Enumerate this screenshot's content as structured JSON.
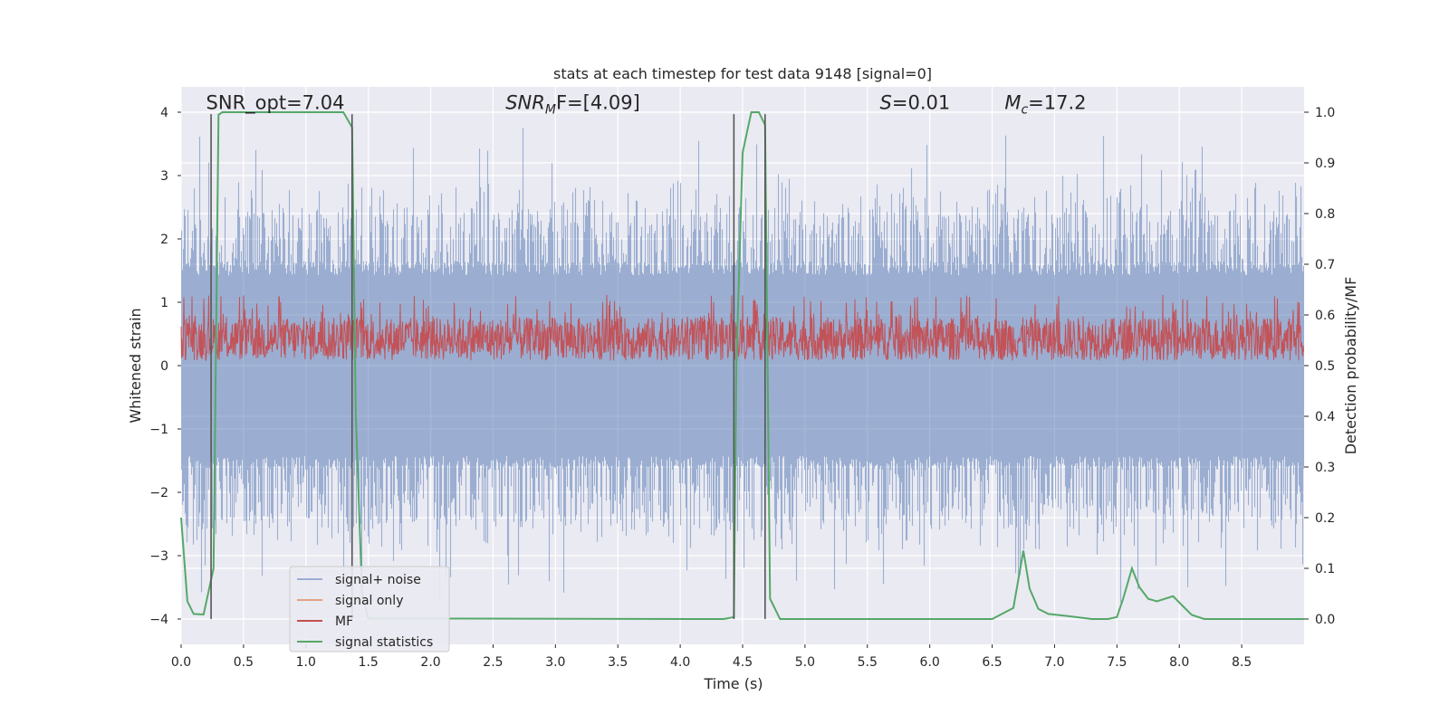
{
  "chart_data": {
    "type": "line",
    "title": "stats at each timestep for test data 9148 [signal=0]",
    "xlabel": "Time (s)",
    "ylabel": "Whitened strain",
    "y2label": "Detection probability/MF",
    "xlim": [
      0.0,
      9.0
    ],
    "ylim": [
      -4.4,
      4.4
    ],
    "y2lim": [
      -0.05,
      1.05
    ],
    "grid": true,
    "legend_position": "lower-left",
    "xticks": [
      0.0,
      0.5,
      1.0,
      1.5,
      2.0,
      2.5,
      3.0,
      3.5,
      4.0,
      4.5,
      5.0,
      5.5,
      6.0,
      6.5,
      7.0,
      7.5,
      8.0,
      8.5
    ],
    "xtick_labels": [
      "0.0",
      "0.5",
      "1.0",
      "1.5",
      "2.0",
      "2.5",
      "3.0",
      "3.5",
      "4.0",
      "4.5",
      "5.0",
      "5.5",
      "6.0",
      "6.5",
      "7.0",
      "7.5",
      "8.0",
      "8.5"
    ],
    "yticks": [
      4,
      3,
      2,
      1,
      0,
      -1,
      -2,
      -3,
      -4
    ],
    "ytick_labels": [
      "4",
      "3",
      "2",
      "1",
      "0",
      "−1",
      "−2",
      "−3",
      "−4"
    ],
    "y2ticks": [
      1.0,
      0.9,
      0.8,
      0.7,
      0.6,
      0.5,
      0.4,
      0.3,
      0.2,
      0.1,
      0.0
    ],
    "y2tick_labels": [
      "1.0",
      "0.9",
      "0.8",
      "0.7",
      "0.6",
      "0.5",
      "0.4",
      "0.3",
      "0.2",
      "0.1",
      "0.0"
    ],
    "annotations": [
      {
        "text": "SNR_opt=7.04",
        "x": 0.2,
        "y": 4.05
      },
      {
        "prefix": "SNR",
        "sub": "M",
        "suffix": "F=[4.09]",
        "x": 2.6,
        "y": 4.05
      },
      {
        "prefix": "S",
        "sub": "",
        "suffix": "=0.01",
        "x": 5.6,
        "y": 4.05
      },
      {
        "prefix": "M",
        "sub": "c",
        "suffix": "=17.2",
        "x": 6.6,
        "y": 4.05
      }
    ],
    "vertical_markers": [
      {
        "x": 0.24,
        "y_range": [
          -4.0,
          3.97
        ]
      },
      {
        "x": 1.37,
        "y_range": [
          -4.0,
          3.97
        ]
      },
      {
        "x": 4.43,
        "y_range": [
          -4.0,
          3.97
        ]
      },
      {
        "x": 4.68,
        "y_range": [
          -4.0,
          3.97
        ]
      }
    ],
    "series": [
      {
        "name": "signal+ noise",
        "color": "#4c72b0",
        "style": "dense noise, approx. |x| <= 2.4 with spikes to ±3.9",
        "envelope_core": 1.5,
        "envelope_peak": 3.9
      },
      {
        "name": "signal only",
        "color": "#dd8452",
        "values": []
      },
      {
        "name": "MF",
        "color": "#c44e52",
        "axis": "right",
        "style": "dense, between 0.50 and 0.63, spikes to 0.64",
        "min": 0.5,
        "max": 0.64
      },
      {
        "name": "signal statistics",
        "color": "#55a868",
        "axis": "right",
        "x": [
          0.0,
          0.05,
          0.1,
          0.18,
          0.26,
          0.3,
          0.33,
          0.4,
          1.3,
          1.37,
          1.4,
          1.45,
          1.5,
          4.35,
          4.43,
          4.45,
          4.5,
          4.57,
          4.63,
          4.68,
          4.72,
          4.8,
          6.5,
          6.67,
          6.75,
          6.8,
          6.87,
          6.95,
          7.1,
          7.3,
          7.43,
          7.5,
          7.55,
          7.62,
          7.68,
          7.75,
          7.82,
          7.95,
          8.03,
          8.1,
          8.2,
          9.0
        ],
        "values": [
          0.2,
          0.035,
          0.01,
          0.009,
          0.1,
          0.995,
          1.0,
          1.0,
          1.0,
          0.97,
          0.4,
          0.05,
          0.001,
          0.0,
          0.004,
          0.5,
          0.92,
          1.0,
          1.0,
          0.975,
          0.04,
          0.0,
          0.0,
          0.022,
          0.135,
          0.06,
          0.02,
          0.01,
          0.006,
          0.0,
          0.0,
          0.004,
          0.04,
          0.1,
          0.063,
          0.04,
          0.035,
          0.045,
          0.025,
          0.008,
          0.0,
          0.0
        ]
      }
    ]
  }
}
